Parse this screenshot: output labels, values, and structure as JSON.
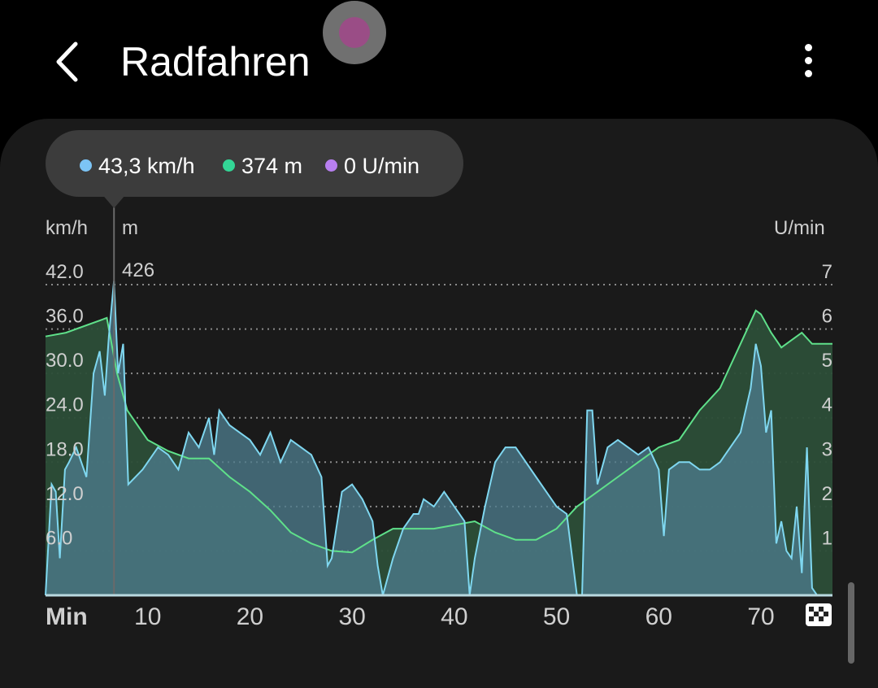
{
  "header": {
    "title": "Radfahren",
    "back_icon": "chevron-left-icon",
    "menu_icon": "more-vertical-icon"
  },
  "tooltip": {
    "items": [
      {
        "color": "#7cc4f5",
        "text": "43,3 km/h"
      },
      {
        "color": "#33d696",
        "text": "374 m"
      },
      {
        "color": "#b87ff0",
        "text": "0 U/min"
      }
    ]
  },
  "colors": {
    "speed_line": "#7fd7f0",
    "speed_fill": "#4d7b8c",
    "elev_line": "#5fe08a",
    "elev_fill": "#2c4e38",
    "teal_overlap": "#4a8b83"
  },
  "chart_data": {
    "type": "area",
    "xlabel": "Min",
    "x_ticks": [
      10,
      20,
      30,
      40,
      50,
      60,
      70
    ],
    "xlim": [
      0,
      77
    ],
    "marker_x": 6.7,
    "finish_icon": "checkered-flag-icon",
    "left_axis": {
      "unit": "km/h",
      "ticks": [
        "42.0",
        "36.0",
        "30.0",
        "24.0",
        "18.0",
        "12.0",
        "6.0"
      ],
      "values": [
        42,
        36,
        30,
        24,
        18,
        12,
        6
      ],
      "ylim": [
        0,
        42
      ]
    },
    "middle_axis": {
      "unit": "m",
      "ticks": [
        "426"
      ]
    },
    "right_axis": {
      "unit": "U/min",
      "ticks": [
        "7",
        "6",
        "5",
        "4",
        "3",
        "2",
        "1"
      ],
      "values": [
        7,
        6,
        5,
        4,
        3,
        2,
        1
      ],
      "ylim": [
        0,
        7
      ]
    },
    "series": [
      {
        "name": "km/h",
        "x": [
          0,
          0.6,
          1,
          1.4,
          1.9,
          2.3,
          3,
          4,
          4.7,
          5.3,
          5.8,
          6.2,
          6.7,
          7.1,
          7.6,
          8.1,
          9.5,
          10,
          11,
          12,
          13,
          14,
          15,
          16,
          16.5,
          17,
          18,
          19,
          20,
          21,
          22,
          23,
          24,
          25,
          26,
          27,
          27.6,
          28,
          29,
          30,
          31,
          32,
          32.5,
          33,
          34,
          35,
          36,
          36.5,
          37,
          38,
          39,
          40,
          41,
          41.5,
          42,
          43,
          44,
          45,
          46,
          47,
          48,
          49,
          50,
          51,
          52,
          52.5,
          53,
          53.5,
          54,
          55,
          56,
          57,
          58,
          59,
          60,
          60.5,
          61,
          62,
          63,
          64,
          65,
          66,
          67,
          68,
          69,
          69.5,
          70,
          70.5,
          71,
          71.5,
          72,
          72.5,
          73,
          73.5,
          74,
          74.5,
          75,
          75.5,
          76,
          77
        ],
        "y": [
          0,
          15,
          14,
          5,
          17,
          18,
          20,
          16,
          30,
          33,
          27,
          35,
          42.5,
          30,
          34,
          15,
          17,
          18,
          20,
          19,
          17,
          22,
          20,
          24,
          19,
          25,
          23,
          22,
          21,
          19,
          22,
          18,
          21,
          20,
          19,
          16,
          4,
          5,
          14,
          15,
          13,
          10,
          4,
          0,
          5,
          9,
          11,
          11,
          13,
          12,
          14,
          12,
          10,
          0,
          5,
          12,
          18,
          20,
          20,
          18,
          16,
          14,
          12,
          11,
          0,
          0,
          25,
          25,
          15,
          20,
          21,
          20,
          19,
          20,
          17,
          8,
          17,
          18,
          18,
          17,
          17,
          18,
          20,
          22,
          28,
          34,
          31,
          22,
          25,
          7,
          10,
          6,
          5,
          12,
          3,
          20,
          1,
          0,
          0,
          0
        ]
      },
      {
        "name": "m",
        "x": [
          0,
          2,
          4,
          6,
          7,
          8,
          10,
          12,
          14,
          16,
          18,
          20,
          22,
          24,
          26,
          28,
          30,
          32,
          34,
          36,
          38,
          40,
          42,
          44,
          46,
          48,
          50,
          52,
          54,
          56,
          58,
          60,
          62,
          64,
          66,
          68,
          69.5,
          70,
          71,
          72,
          73,
          74,
          75,
          77
        ],
        "y": [
          35,
          35.5,
          36.5,
          37.5,
          30,
          25,
          21,
          19.5,
          18.5,
          18.5,
          16,
          14,
          11.5,
          8.5,
          7,
          6,
          5.8,
          7.5,
          9,
          9,
          9,
          9.5,
          10,
          8.5,
          7.5,
          7.5,
          9,
          12,
          14,
          16,
          18,
          20,
          21,
          25,
          28,
          34,
          38.5,
          38,
          35.5,
          33.5,
          34.5,
          35.5,
          34,
          34
        ]
      }
    ]
  }
}
